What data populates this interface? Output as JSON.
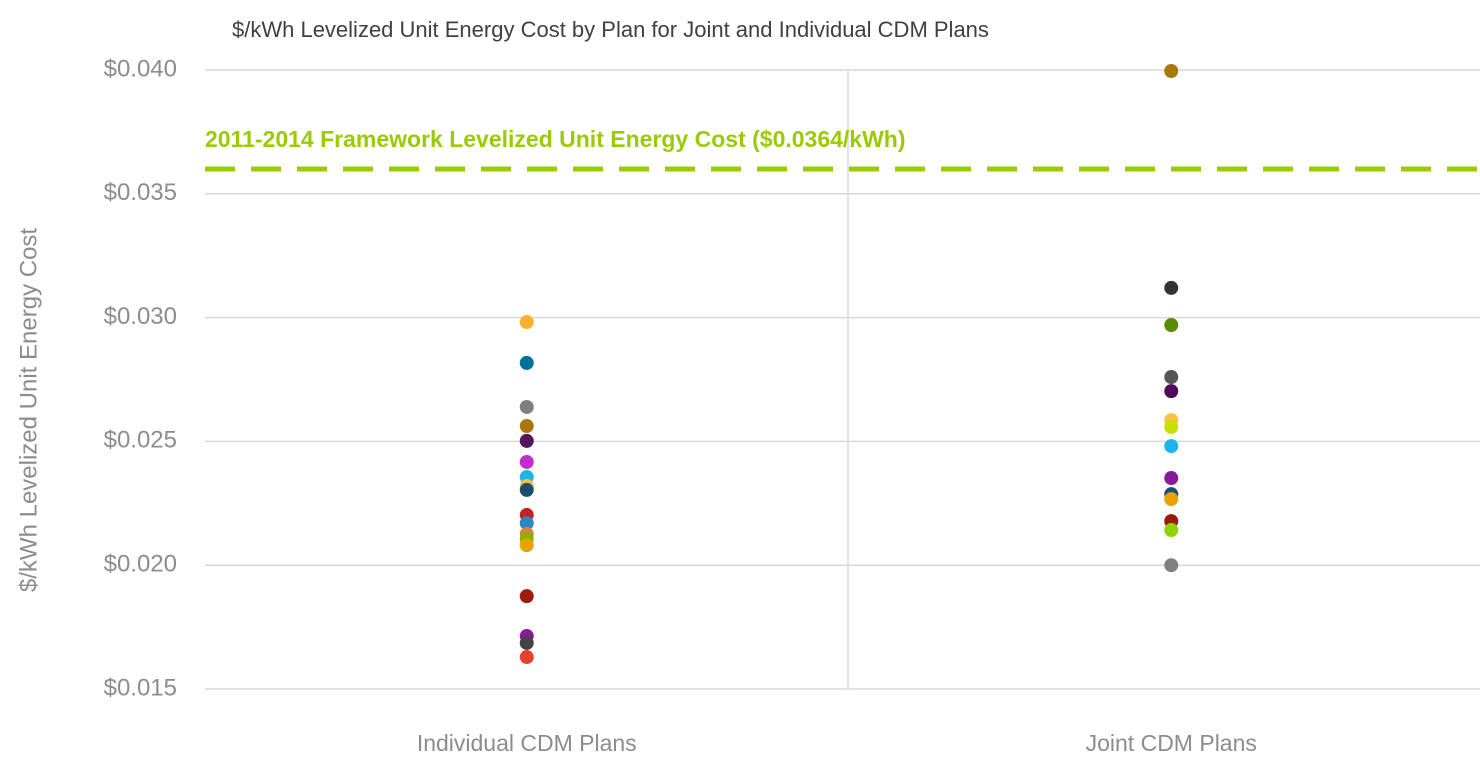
{
  "chart_data": {
    "type": "strip",
    "title": "$/kWh Levelized Unit Energy Cost by Plan for Joint and Individual CDM Plans",
    "y_label": "$/kWh Levelized Unit Energy Cost",
    "categories": [
      "Individual CDM Plans",
      "Joint CDM Plans"
    ],
    "values": [
      [
        0.02982,
        0.02817,
        0.02639,
        0.02562,
        0.02502,
        0.02417,
        0.02356,
        0.0232,
        0.02304,
        0.02203,
        0.0217,
        0.02126,
        0.02106,
        0.02081,
        0.01875,
        0.01714,
        0.01686,
        0.01629
      ],
      [
        0.03996,
        0.0312,
        0.0297,
        0.0276,
        0.02703,
        0.02586,
        0.02558,
        0.02481,
        0.02352,
        0.02287,
        0.02267,
        0.02178,
        0.02142,
        0.02
      ]
    ],
    "colors": [
      [
        "#fbb12e",
        "#00719a",
        "#7f7f7f",
        "#a8790a",
        "#531857",
        "#c02ed0",
        "#1cb5ea",
        "#fdc04a",
        "#1a4f72",
        "#c8201f",
        "#2e86c1",
        "#d4843c",
        "#8db000",
        "#e8a300",
        "#9c1b0e",
        "#8b1a9a",
        "#444444",
        "#e8402f"
      ],
      [
        "#a8790a",
        "#333333",
        "#5a8a00",
        "#555555",
        "#530a57",
        "#fdc04a",
        "#c8e000",
        "#1cb5ea",
        "#8b1a9a",
        "#1a4f72",
        "#e8a300",
        "#9c1b0e",
        "#8fd400",
        "#808080"
      ]
    ],
    "ylim": [
      0.015,
      0.04
    ],
    "yticks": [
      {
        "value": 0.015,
        "label": "$0.015"
      },
      {
        "value": 0.02,
        "label": "$0.020"
      },
      {
        "value": 0.025,
        "label": "$0.025"
      },
      {
        "value": 0.03,
        "label": "$0.030"
      },
      {
        "value": 0.035,
        "label": "$0.035"
      },
      {
        "value": 0.04,
        "label": "$0.040"
      }
    ],
    "grid": true,
    "reference_line": {
      "value": 0.036,
      "label": "2011-2014 Framework Levelized Unit Energy Cost ($0.0364/kWh)",
      "color": "#99cc00"
    }
  }
}
